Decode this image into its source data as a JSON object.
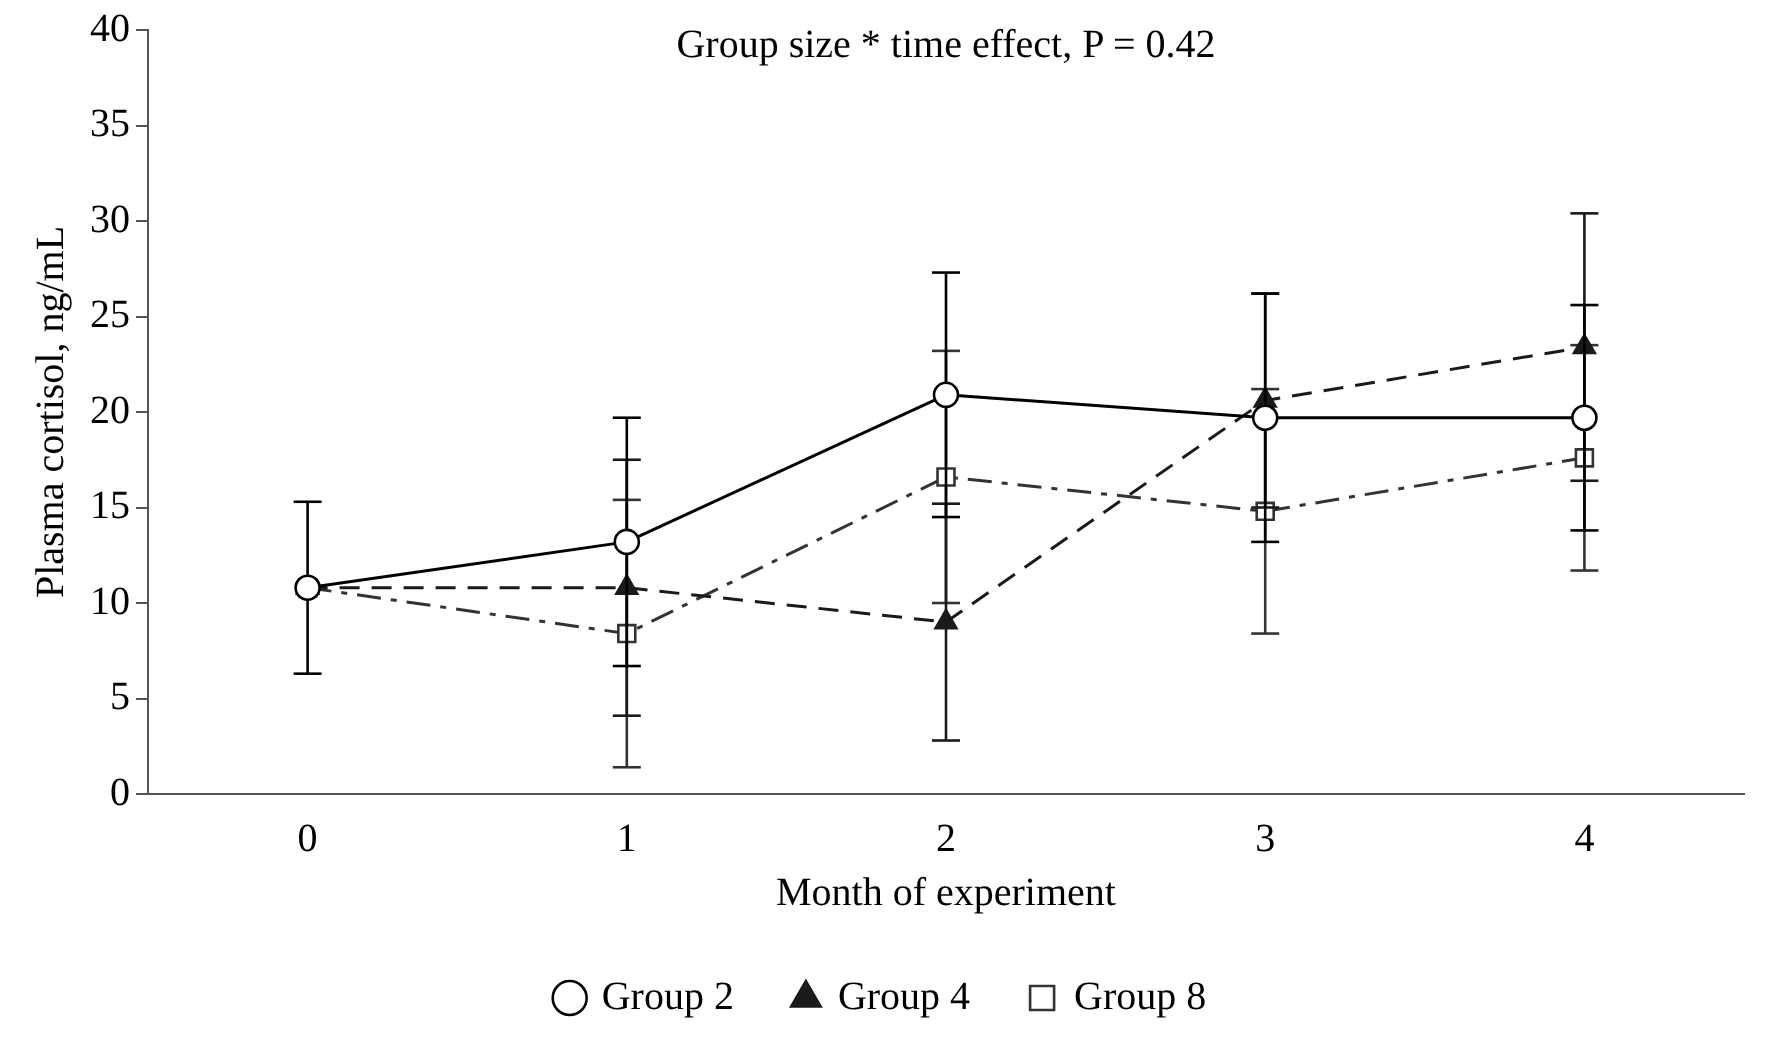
{
  "chart_data": {
    "type": "line",
    "title": "Group size * time effect, P = 0.42",
    "xlabel": "Month of experiment",
    "ylabel": "Plasma cortisol, ng/mL",
    "categories": [
      "0",
      "1",
      "2",
      "3",
      "4"
    ],
    "series": [
      {
        "name": "Group 2",
        "color": "#000000",
        "marker": "circle",
        "line_style": "solid",
        "values": [
          10.8,
          13.2,
          20.9,
          19.7,
          19.7
        ],
        "errors": [
          4.5,
          6.5,
          6.4,
          6.5,
          5.9
        ]
      },
      {
        "name": "Group 4",
        "color": "#1a1a1a",
        "marker": "triangle",
        "line_style": "dashed",
        "values": [
          10.8,
          10.8,
          9.0,
          20.6,
          23.4
        ],
        "errors": [
          null,
          6.7,
          6.2,
          5.6,
          7.0
        ]
      },
      {
        "name": "Group 8",
        "color": "#333333",
        "marker": "square",
        "line_style": "dashdot",
        "values": [
          10.8,
          8.4,
          16.6,
          14.8,
          17.6
        ],
        "errors": [
          null,
          7.0,
          6.6,
          6.4,
          5.9
        ]
      }
    ],
    "ylim": [
      0,
      40
    ],
    "yticks": [
      0,
      5,
      10,
      15,
      20,
      25,
      30,
      35,
      40
    ],
    "grid": false,
    "legend": "bottom"
  }
}
